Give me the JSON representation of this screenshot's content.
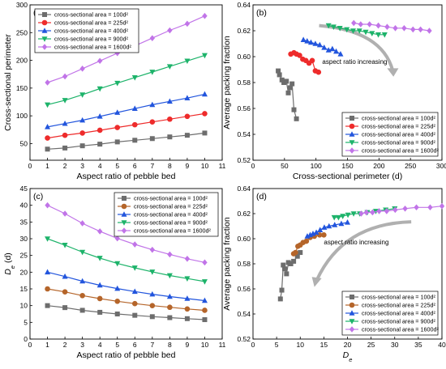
{
  "chart_data": [
    {
      "type": "line",
      "panel": "(a)",
      "xlabel": "Aspect ratio of pebble bed",
      "ylabel": "Cross-sectional perimeter",
      "xlim": [
        0,
        11
      ],
      "ylim": [
        20,
        300
      ],
      "xticks": [
        0,
        1,
        2,
        3,
        4,
        5,
        6,
        7,
        8,
        9,
        10,
        11
      ],
      "yticks": [
        50,
        100,
        150,
        200,
        250,
        300
      ],
      "legend_position": "top-left",
      "x": [
        1,
        2,
        3,
        4,
        5,
        6,
        7,
        8,
        9,
        10
      ],
      "series": [
        {
          "name": "cross-sectional area = 100d²",
          "color": "#6d6d6d",
          "marker": "square",
          "values": [
            40,
            42,
            46,
            49,
            53,
            56,
            59,
            62,
            65,
            69
          ]
        },
        {
          "name": "cross-sectional area = 225d²",
          "color": "#ee2b2b",
          "marker": "circle",
          "values": [
            60,
            65,
            69,
            74,
            79,
            84,
            89,
            94,
            99,
            104
          ]
        },
        {
          "name": "cross-sectional area = 400d²",
          "color": "#2255dd",
          "marker": "triangle-up",
          "values": [
            80,
            86,
            92,
            99,
            106,
            113,
            120,
            126,
            132,
            139
          ]
        },
        {
          "name": "cross-sectional area = 900d²",
          "color": "#1db36a",
          "marker": "triangle-down",
          "values": [
            120,
            128,
            138,
            149,
            159,
            169,
            179,
            189,
            199,
            209
          ]
        },
        {
          "name": "cross-sectional area = 1600d²",
          "color": "#c174e8",
          "marker": "diamond",
          "values": [
            160,
            171,
            185,
            199,
            213,
            226,
            240,
            254,
            266,
            280
          ]
        }
      ]
    },
    {
      "type": "line",
      "panel": "(b)",
      "xlabel": "Cross-sectional perimeter (d)",
      "ylabel": "Average packing fraction",
      "xlim": [
        0,
        300
      ],
      "ylim": [
        0.52,
        0.64
      ],
      "xticks": [
        0,
        50,
        100,
        150,
        200,
        250,
        300
      ],
      "yticks": [
        0.52,
        0.54,
        0.56,
        0.58,
        0.6,
        0.62,
        0.64
      ],
      "legend_position": "bottom-right",
      "annotation": "aspect ratio increasing",
      "series": [
        {
          "name": "cross-sectional area = 100d²",
          "color": "#6d6d6d",
          "marker": "square",
          "x": [
            40,
            42,
            46,
            49,
            53,
            56,
            59,
            62,
            65,
            69
          ],
          "values": [
            0.589,
            0.586,
            0.582,
            0.58,
            0.581,
            0.572,
            0.576,
            0.579,
            0.559,
            0.552
          ]
        },
        {
          "name": "cross-sectional area = 225d²",
          "color": "#ee2b2b",
          "marker": "circle",
          "x": [
            60,
            65,
            69,
            74,
            79,
            84,
            89,
            94,
            99,
            104
          ],
          "values": [
            0.602,
            0.603,
            0.602,
            0.601,
            0.598,
            0.597,
            0.595,
            0.597,
            0.589,
            0.588
          ]
        },
        {
          "name": "cross-sectional area = 400d²",
          "color": "#2255dd",
          "marker": "triangle-up",
          "x": [
            80,
            86,
            92,
            99,
            106,
            113,
            120,
            126,
            132,
            139
          ],
          "values": [
            0.613,
            0.612,
            0.611,
            0.61,
            0.609,
            0.607,
            0.605,
            0.606,
            0.604,
            0.602
          ]
        },
        {
          "name": "cross-sectional area = 900d²",
          "color": "#1db36a",
          "marker": "triangle-down",
          "x": [
            120,
            128,
            138,
            149,
            159,
            169,
            179,
            189,
            199,
            209
          ],
          "values": [
            0.624,
            0.623,
            0.622,
            0.621,
            0.62,
            0.62,
            0.619,
            0.618,
            0.617,
            0.617
          ]
        },
        {
          "name": "cross-sectional area = 1600d²",
          "color": "#c174e8",
          "marker": "diamond",
          "x": [
            160,
            171,
            185,
            199,
            213,
            226,
            240,
            254,
            266,
            280
          ],
          "values": [
            0.626,
            0.625,
            0.625,
            0.624,
            0.623,
            0.622,
            0.622,
            0.621,
            0.621,
            0.62
          ]
        }
      ]
    },
    {
      "type": "line",
      "panel": "(c)",
      "xlabel": "Aspect ratio of pebble bed",
      "ylabel_main": "D",
      "ylabel_sub": "e",
      "ylabel_unit": "(d)",
      "xlim": [
        0,
        11
      ],
      "ylim": [
        0,
        45
      ],
      "xticks": [
        0,
        1,
        2,
        3,
        4,
        5,
        6,
        7,
        8,
        9,
        10,
        11
      ],
      "yticks": [
        0,
        5,
        10,
        15,
        20,
        25,
        30,
        35,
        40,
        45
      ],
      "legend_position": "top-right",
      "x": [
        1,
        2,
        3,
        4,
        5,
        6,
        7,
        8,
        9,
        10
      ],
      "series": [
        {
          "name": "cross-sectional area = 100d²",
          "color": "#6d6d6d",
          "marker": "square",
          "values": [
            10.0,
            9.4,
            8.6,
            8.0,
            7.5,
            7.1,
            6.7,
            6.4,
            6.1,
            5.8
          ]
        },
        {
          "name": "cross-sectional area = 225d²",
          "color": "#b5652a",
          "marker": "circle",
          "values": [
            15.0,
            14.1,
            13.0,
            12.1,
            11.3,
            10.6,
            10.0,
            9.5,
            9.0,
            8.6
          ]
        },
        {
          "name": "cross-sectional area = 400d²",
          "color": "#2255dd",
          "marker": "triangle-up",
          "values": [
            20.0,
            18.7,
            17.3,
            16.1,
            15.1,
            14.2,
            13.4,
            12.7,
            12.1,
            11.5
          ]
        },
        {
          "name": "cross-sectional area = 900d²",
          "color": "#1db36a",
          "marker": "triangle-down",
          "values": [
            30.0,
            28.1,
            26.0,
            24.2,
            22.6,
            21.3,
            20.1,
            19.0,
            18.1,
            17.2
          ]
        },
        {
          "name": "cross-sectional area = 1600d²",
          "color": "#c174e8",
          "marker": "diamond",
          "values": [
            40.0,
            37.5,
            34.6,
            32.2,
            30.1,
            28.3,
            26.7,
            25.3,
            24.0,
            22.9
          ]
        }
      ]
    },
    {
      "type": "line",
      "panel": "(d)",
      "xlabel_main": "D",
      "xlabel_sub": "e",
      "ylabel": "Average packing fraction",
      "xlim": [
        0,
        40
      ],
      "ylim": [
        0.52,
        0.64
      ],
      "xticks": [
        0,
        5,
        10,
        15,
        20,
        25,
        30,
        35,
        40
      ],
      "yticks": [
        0.52,
        0.54,
        0.56,
        0.58,
        0.6,
        0.62,
        0.64
      ],
      "legend_position": "bottom-right",
      "annotation": "aspect ratio increasing",
      "series": [
        {
          "name": "cross-sectional area = 100d²",
          "color": "#6d6d6d",
          "marker": "square",
          "x": [
            10.0,
            9.4,
            8.6,
            8.0,
            7.5,
            7.1,
            6.7,
            6.4,
            6.1,
            5.8
          ],
          "values": [
            0.589,
            0.586,
            0.582,
            0.58,
            0.581,
            0.572,
            0.576,
            0.579,
            0.559,
            0.552
          ]
        },
        {
          "name": "cross-sectional area = 225d²",
          "color": "#b5652a",
          "marker": "circle",
          "x": [
            15.0,
            14.1,
            13.0,
            12.1,
            11.3,
            10.6,
            10.0,
            9.5,
            9.0,
            8.6
          ],
          "values": [
            0.603,
            0.603,
            0.602,
            0.601,
            0.598,
            0.597,
            0.595,
            0.594,
            0.589,
            0.588
          ]
        },
        {
          "name": "cross-sectional area = 400d²",
          "color": "#2255dd",
          "marker": "triangle-up",
          "x": [
            20.0,
            18.7,
            17.3,
            16.1,
            15.1,
            14.2,
            13.4,
            12.7,
            12.1,
            11.5
          ],
          "values": [
            0.613,
            0.612,
            0.611,
            0.61,
            0.609,
            0.607,
            0.605,
            0.604,
            0.603,
            0.602
          ]
        },
        {
          "name": "cross-sectional area = 900d²",
          "color": "#1db36a",
          "marker": "triangle-down",
          "x": [
            30.0,
            28.1,
            26.0,
            24.2,
            22.6,
            21.3,
            20.1,
            19.0,
            18.1,
            17.2
          ],
          "values": [
            0.624,
            0.623,
            0.622,
            0.621,
            0.62,
            0.62,
            0.619,
            0.618,
            0.617,
            0.617
          ]
        },
        {
          "name": "cross-sectional area = 1600d²",
          "color": "#c174e8",
          "marker": "diamond",
          "x": [
            40.0,
            37.5,
            34.6,
            32.2,
            30.1,
            28.3,
            26.7,
            25.3,
            24.0,
            22.9
          ],
          "values": [
            0.626,
            0.625,
            0.625,
            0.624,
            0.623,
            0.622,
            0.622,
            0.621,
            0.621,
            0.62
          ]
        }
      ]
    }
  ]
}
